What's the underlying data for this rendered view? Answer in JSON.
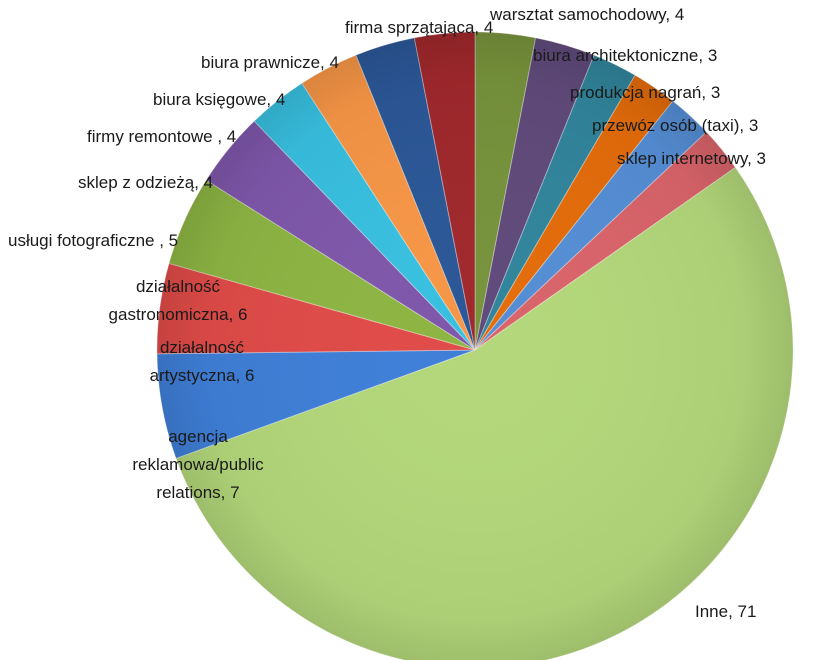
{
  "chart_data": {
    "type": "pie",
    "title": "",
    "legend": "none",
    "start_angle_deg": 90,
    "direction": "clockwise",
    "slices": [
      {
        "label": "firma sprzątająca",
        "value": 4,
        "color": "#77933C",
        "label_text": "firma sprzątająca, 4"
      },
      {
        "label": "warsztat samochodowy",
        "value": 4,
        "color": "#604A7B",
        "label_text": "warsztat samochodowy, 4"
      },
      {
        "label": "biura architektoniczne",
        "value": 3,
        "color": "#31859C",
        "label_text": "biura architektoniczne, 3"
      },
      {
        "label": "produkcja nagrań",
        "value": 3,
        "color": "#E46C0A",
        "label_text": "produkcja nagrań, 3"
      },
      {
        "label": "przewóz osób (taxi)",
        "value": 3,
        "color": "#558ED5",
        "label_text": "przewóz osób (taxi), 3"
      },
      {
        "label": "sklep internetowy",
        "value": 3,
        "color": "#D9646A",
        "label_text": "sklep internetowy, 3"
      },
      {
        "label": "Inne",
        "value": 71,
        "color": "#B3D77A",
        "label_text": "Inne, 71"
      },
      {
        "label": "agencja reklamowa/public relations",
        "value": 7,
        "color": "#3F7FD8",
        "label_text": [
          "agencja",
          "reklamowa/public",
          "relations, 7"
        ]
      },
      {
        "label": "działalność artystyczna",
        "value": 6,
        "color": "#E04B48",
        "label_text": [
          "działalność",
          "artystyczna, 6"
        ]
      },
      {
        "label": "działalność gastronomiczna",
        "value": 6,
        "color": "#8DB543",
        "label_text": [
          "działalność",
          "gastronomiczna, 6"
        ]
      },
      {
        "label": "usługi fotograficzne",
        "value": 5,
        "color": "#7F57AB",
        "label_text": "usługi fotograficzne , 5"
      },
      {
        "label": "sklep z odzieżą",
        "value": 4,
        "color": "#38C0E0",
        "label_text": "sklep z odzieżą, 4"
      },
      {
        "label": "firmy remontowe",
        "value": 4,
        "color": "#F79646",
        "label_text": "firmy remontowe , 4"
      },
      {
        "label": "biura księgowe",
        "value": 4,
        "color": "#2B5797",
        "label_text": "biura księgowe, 4"
      },
      {
        "label": "biura prawnicze",
        "value": 4,
        "color": "#A0282C",
        "label_text": "biura prawnicze, 4"
      }
    ]
  }
}
